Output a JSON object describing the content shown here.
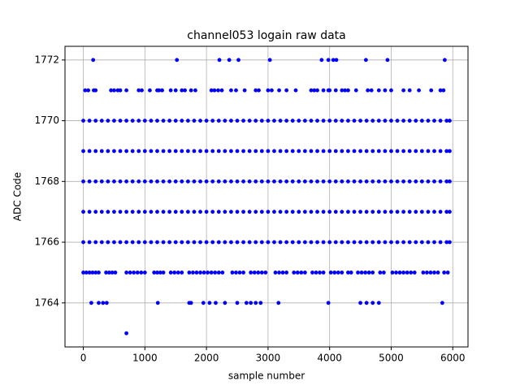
{
  "chart_data": {
    "type": "scatter",
    "title": "channel053 logain raw data",
    "x_label": "sample number",
    "y_label": "ADC Code",
    "color": "blue",
    "grid": true,
    "xlim": [
      -297.5,
      6247.5
    ],
    "xticks": [
      0,
      1000,
      2000,
      3000,
      4000,
      5000,
      6000
    ],
    "ylim": [
      1762.55,
      1772.45
    ],
    "yticks": [
      1764,
      1766,
      1768,
      1770,
      1772
    ],
    "x": [
      0,
      100,
      200,
      300,
      400,
      500,
      600,
      700,
      800,
      900,
      1000,
      1100,
      1200,
      1300,
      1400,
      1500,
      1600,
      1700,
      1800,
      1900,
      2000,
      2100,
      2200,
      2300,
      2400,
      2500,
      2600,
      2700,
      2800,
      2900,
      3000,
      3100,
      3200,
      3300,
      3400,
      3500,
      3600,
      3700,
      3800,
      3900,
      4000,
      4100,
      4200,
      4300,
      4400,
      4500,
      4600,
      4700,
      4800,
      4900,
      5000,
      5100,
      5200,
      5300,
      5400,
      5500,
      5600,
      5700,
      5800,
      5900,
      5950,
      0,
      100,
      200,
      300,
      400,
      500,
      600,
      700,
      800,
      900,
      1000,
      1100,
      1200,
      1300,
      1400,
      1500,
      1600,
      1700,
      1800,
      1900,
      2000,
      2100,
      2200,
      2300,
      2400,
      2500,
      2600,
      2700,
      2800,
      2900,
      3000,
      3100,
      3200,
      3300,
      3400,
      3500,
      3600,
      3700,
      3800,
      3900,
      4000,
      4100,
      4200,
      4300,
      4400,
      4500,
      4600,
      4700,
      4800,
      4900,
      5000,
      5100,
      5200,
      5300,
      5400,
      5500,
      5600,
      5700,
      5800,
      5900,
      5950,
      0,
      100,
      200,
      300,
      400,
      500,
      600,
      700,
      800,
      900,
      1000,
      1100,
      1200,
      1300,
      1400,
      1500,
      1600,
      1700,
      1800,
      1900,
      2000,
      2100,
      2200,
      2300,
      2400,
      2500,
      2600,
      2700,
      2800,
      2900,
      3000,
      3100,
      3200,
      3300,
      3400,
      3500,
      3600,
      3700,
      3800,
      3900,
      4000,
      4100,
      4200,
      4300,
      4400,
      4500,
      4600,
      4700,
      4800,
      4900,
      5000,
      5100,
      5200,
      5300,
      5400,
      5500,
      5600,
      5700,
      5800,
      5900,
      5950,
      0,
      100,
      200,
      300,
      400,
      500,
      600,
      700,
      800,
      900,
      1000,
      1100,
      1200,
      1300,
      1400,
      1500,
      1600,
      1700,
      1800,
      1900,
      2000,
      2100,
      2200,
      2300,
      2400,
      2500,
      2600,
      2700,
      2800,
      2900,
      3000,
      3100,
      3200,
      3300,
      3400,
      3500,
      3600,
      3700,
      3800,
      3900,
      4000,
      4100,
      4200,
      4300,
      4400,
      4500,
      4600,
      4700,
      4800,
      4900,
      5000,
      5100,
      5200,
      5300,
      5400,
      5500,
      5600,
      5700,
      5800,
      5900,
      5950,
      0,
      100,
      200,
      300,
      400,
      500,
      600,
      700,
      800,
      900,
      1000,
      1100,
      1200,
      1300,
      1400,
      1500,
      1600,
      1700,
      1800,
      1900,
      2000,
      2100,
      2200,
      2300,
      2400,
      2500,
      2600,
      2700,
      2800,
      2900,
      3000,
      3100,
      3200,
      3300,
      3400,
      3500,
      3600,
      3700,
      3800,
      3900,
      4000,
      4100,
      4200,
      4300,
      4400,
      4500,
      4600,
      4700,
      4800,
      4900,
      5000,
      5100,
      5200,
      5300,
      5400,
      5500,
      5600,
      5700,
      5800,
      5900,
      5950,
      0,
      50,
      100,
      150,
      200,
      250,
      370,
      420,
      470,
      520,
      700,
      760,
      820,
      880,
      940,
      1000,
      1150,
      1200,
      1250,
      1300,
      1420,
      1480,
      1540,
      1600,
      1720,
      1780,
      1840,
      1900,
      1960,
      2020,
      2080,
      2140,
      2200,
      2260,
      2420,
      2480,
      2540,
      2600,
      2720,
      2780,
      2840,
      2900,
      2960,
      3120,
      3180,
      3240,
      3300,
      3420,
      3480,
      3540,
      3600,
      3720,
      3780,
      3840,
      3900,
      4020,
      4080,
      4140,
      4200,
      4300,
      4350,
      4460,
      4520,
      4580,
      4640,
      4700,
      4820,
      4880,
      5020,
      5080,
      5140,
      5200,
      5260,
      5320,
      5380,
      5520,
      5580,
      5640,
      5700,
      5760,
      5860,
      5920,
      130,
      250,
      320,
      380,
      1210,
      1720,
      1750,
      1950,
      2050,
      2150,
      2300,
      2500,
      2650,
      2720,
      2800,
      2880,
      3170,
      3980,
      4500,
      4600,
      4700,
      4800,
      5830,
      30,
      80,
      170,
      200,
      450,
      500,
      560,
      600,
      700,
      900,
      950,
      1080,
      1200,
      1230,
      1280,
      1420,
      1500,
      1600,
      1650,
      1750,
      1820,
      2080,
      2130,
      2190,
      2250,
      2400,
      2480,
      2620,
      2800,
      2850,
      3000,
      3060,
      3180,
      3300,
      3450,
      3700,
      3750,
      3800,
      3900,
      3980,
      4000,
      4100,
      4200,
      4250,
      4300,
      4430,
      4620,
      4680,
      4800,
      4900,
      5000,
      5200,
      5300,
      5450,
      5650,
      5800,
      5850,
      160,
      1520,
      2210,
      2370,
      2520,
      3030,
      3870,
      3980,
      4060,
      4110,
      4590,
      4940,
      5870,
      700
    ],
    "y": [
      1770,
      1770,
      1770,
      1770,
      1770,
      1770,
      1770,
      1770,
      1770,
      1770,
      1770,
      1770,
      1770,
      1770,
      1770,
      1770,
      1770,
      1770,
      1770,
      1770,
      1770,
      1770,
      1770,
      1770,
      1770,
      1770,
      1770,
      1770,
      1770,
      1770,
      1770,
      1770,
      1770,
      1770,
      1770,
      1770,
      1770,
      1770,
      1770,
      1770,
      1770,
      1770,
      1770,
      1770,
      1770,
      1770,
      1770,
      1770,
      1770,
      1770,
      1770,
      1770,
      1770,
      1770,
      1770,
      1770,
      1770,
      1770,
      1770,
      1770,
      1770,
      1769,
      1769,
      1769,
      1769,
      1769,
      1769,
      1769,
      1769,
      1769,
      1769,
      1769,
      1769,
      1769,
      1769,
      1769,
      1769,
      1769,
      1769,
      1769,
      1769,
      1769,
      1769,
      1769,
      1769,
      1769,
      1769,
      1769,
      1769,
      1769,
      1769,
      1769,
      1769,
      1769,
      1769,
      1769,
      1769,
      1769,
      1769,
      1769,
      1769,
      1769,
      1769,
      1769,
      1769,
      1769,
      1769,
      1769,
      1769,
      1769,
      1769,
      1769,
      1769,
      1769,
      1769,
      1769,
      1769,
      1769,
      1769,
      1769,
      1769,
      1769,
      1768,
      1768,
      1768,
      1768,
      1768,
      1768,
      1768,
      1768,
      1768,
      1768,
      1768,
      1768,
      1768,
      1768,
      1768,
      1768,
      1768,
      1768,
      1768,
      1768,
      1768,
      1768,
      1768,
      1768,
      1768,
      1768,
      1768,
      1768,
      1768,
      1768,
      1768,
      1768,
      1768,
      1768,
      1768,
      1768,
      1768,
      1768,
      1768,
      1768,
      1768,
      1768,
      1768,
      1768,
      1768,
      1768,
      1768,
      1768,
      1768,
      1768,
      1768,
      1768,
      1768,
      1768,
      1768,
      1768,
      1768,
      1768,
      1768,
      1768,
      1768,
      1767,
      1767,
      1767,
      1767,
      1767,
      1767,
      1767,
      1767,
      1767,
      1767,
      1767,
      1767,
      1767,
      1767,
      1767,
      1767,
      1767,
      1767,
      1767,
      1767,
      1767,
      1767,
      1767,
      1767,
      1767,
      1767,
      1767,
      1767,
      1767,
      1767,
      1767,
      1767,
      1767,
      1767,
      1767,
      1767,
      1767,
      1767,
      1767,
      1767,
      1767,
      1767,
      1767,
      1767,
      1767,
      1767,
      1767,
      1767,
      1767,
      1767,
      1767,
      1767,
      1767,
      1767,
      1767,
      1767,
      1767,
      1767,
      1767,
      1767,
      1767,
      1766,
      1766,
      1766,
      1766,
      1766,
      1766,
      1766,
      1766,
      1766,
      1766,
      1766,
      1766,
      1766,
      1766,
      1766,
      1766,
      1766,
      1766,
      1766,
      1766,
      1766,
      1766,
      1766,
      1766,
      1766,
      1766,
      1766,
      1766,
      1766,
      1766,
      1766,
      1766,
      1766,
      1766,
      1766,
      1766,
      1766,
      1766,
      1766,
      1766,
      1766,
      1766,
      1766,
      1766,
      1766,
      1766,
      1766,
      1766,
      1766,
      1766,
      1766,
      1766,
      1766,
      1766,
      1766,
      1766,
      1766,
      1766,
      1766,
      1766,
      1766,
      1765,
      1765,
      1765,
      1765,
      1765,
      1765,
      1765,
      1765,
      1765,
      1765,
      1765,
      1765,
      1765,
      1765,
      1765,
      1765,
      1765,
      1765,
      1765,
      1765,
      1765,
      1765,
      1765,
      1765,
      1765,
      1765,
      1765,
      1765,
      1765,
      1765,
      1765,
      1765,
      1765,
      1765,
      1765,
      1765,
      1765,
      1765,
      1765,
      1765,
      1765,
      1765,
      1765,
      1765,
      1765,
      1765,
      1765,
      1765,
      1765,
      1765,
      1765,
      1765,
      1765,
      1765,
      1765,
      1765,
      1765,
      1765,
      1765,
      1765,
      1765,
      1765,
      1765,
      1765,
      1765,
      1765,
      1765,
      1765,
      1765,
      1765,
      1765,
      1765,
      1765,
      1765,
      1765,
      1765,
      1765,
      1765,
      1765,
      1765,
      1765,
      1765,
      1764,
      1764,
      1764,
      1764,
      1764,
      1764,
      1764,
      1764,
      1764,
      1764,
      1764,
      1764,
      1764,
      1764,
      1764,
      1764,
      1764,
      1764,
      1764,
      1764,
      1764,
      1764,
      1764,
      1771,
      1771,
      1771,
      1771,
      1771,
      1771,
      1771,
      1771,
      1771,
      1771,
      1771,
      1771,
      1771,
      1771,
      1771,
      1771,
      1771,
      1771,
      1771,
      1771,
      1771,
      1771,
      1771,
      1771,
      1771,
      1771,
      1771,
      1771,
      1771,
      1771,
      1771,
      1771,
      1771,
      1771,
      1771,
      1771,
      1771,
      1771,
      1771,
      1771,
      1771,
      1771,
      1771,
      1771,
      1771,
      1771,
      1771,
      1771,
      1771,
      1771,
      1771,
      1771,
      1771,
      1771,
      1771,
      1771,
      1771,
      1772,
      1772,
      1772,
      1772,
      1772,
      1772,
      1772,
      1772,
      1772,
      1772,
      1772,
      1772,
      1772,
      1763
    ]
  }
}
